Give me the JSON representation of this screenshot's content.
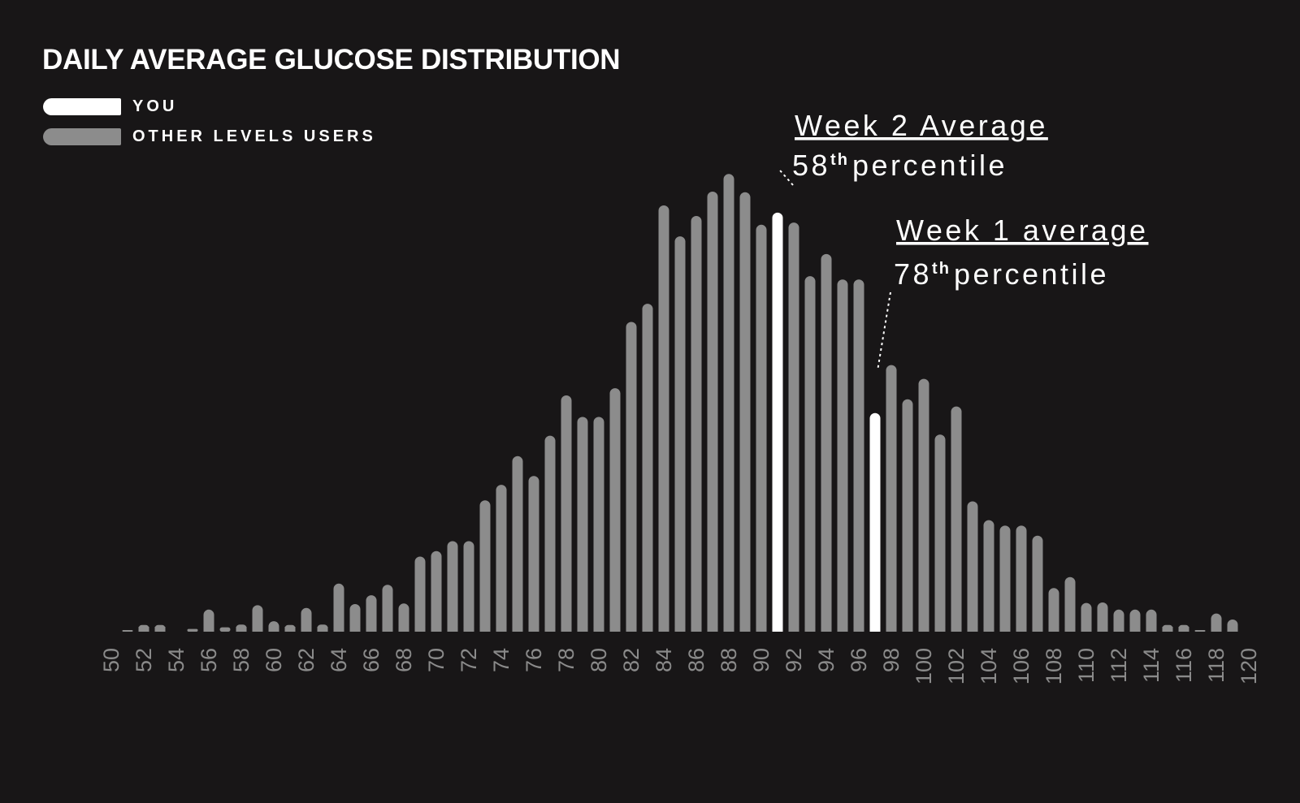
{
  "colors": {
    "background": "#181617",
    "you": "#ffffff",
    "others": "#8c8c8c",
    "tick": "#8a8a8a"
  },
  "chart_data": {
    "type": "bar",
    "title": "DAILY AVERAGE GLUCOSE DISTRIBUTION",
    "legend": [
      {
        "name": "YOU",
        "color": "#ffffff"
      },
      {
        "name": "OTHER LEVELS USERS",
        "color": "#8c8c8c"
      }
    ],
    "legend_position": "top-left",
    "grid": false,
    "xlabel": "",
    "ylabel": "",
    "x": [
      50,
      51,
      52,
      53,
      54,
      55,
      56,
      57,
      58,
      59,
      60,
      61,
      62,
      63,
      64,
      65,
      66,
      67,
      68,
      69,
      70,
      71,
      72,
      73,
      74,
      75,
      76,
      77,
      78,
      79,
      80,
      81,
      82,
      83,
      84,
      85,
      86,
      87,
      88,
      89,
      90,
      91,
      92,
      93,
      94,
      95,
      96,
      97,
      98,
      99,
      100,
      101,
      102,
      103,
      104,
      105,
      106,
      107,
      108,
      109,
      110,
      111,
      112,
      113,
      114,
      115,
      116,
      117,
      118,
      119,
      120
    ],
    "x_tick_labels": [
      "50",
      "52",
      "54",
      "56",
      "58",
      "60",
      "62",
      "64",
      "66",
      "68",
      "70",
      "72",
      "74",
      "76",
      "78",
      "80",
      "82",
      "84",
      "86",
      "88",
      "90",
      "92",
      "94",
      "96",
      "98",
      "100",
      "102",
      "104",
      "106",
      "108",
      "110",
      "112",
      "114",
      "116",
      "118",
      "120"
    ],
    "values": [
      0,
      0.3,
      1.2,
      1.2,
      0,
      0.5,
      4,
      0.8,
      1.3,
      4.8,
      1.9,
      1.2,
      4.3,
      1.3,
      8.7,
      5,
      6.6,
      8.5,
      5.1,
      13.6,
      14.6,
      16.4,
      16.4,
      23.8,
      26.6,
      31.8,
      28.2,
      35.5,
      42.8,
      38.9,
      38.9,
      44.1,
      56.1,
      59.4,
      77.2,
      71.6,
      75.3,
      79.7,
      82.9,
      79.6,
      73.7,
      75.9,
      74.1,
      64.4,
      68.4,
      63.8,
      63.8,
      39.6,
      48.3,
      42.1,
      45.8,
      35.7,
      40.8,
      23.6,
      20.2,
      19.2,
      19.2,
      17.4,
      7.9,
      9.9,
      5.2,
      5.3,
      4,
      4,
      4,
      1.2,
      1.2,
      0.3,
      3.3,
      2.2,
      0
    ],
    "highlight_x": [
      91,
      97
    ],
    "ylim": [
      0,
      100
    ],
    "annotations": [
      {
        "x": 91,
        "title": "Week 2 Average",
        "percentile_num": "58",
        "percentile_sup": "th",
        "percentile_text": "percentile"
      },
      {
        "x": 97,
        "title": "Week 1 average",
        "percentile_num": "78",
        "percentile_sup": "th",
        "percentile_text": "percentile"
      }
    ]
  }
}
